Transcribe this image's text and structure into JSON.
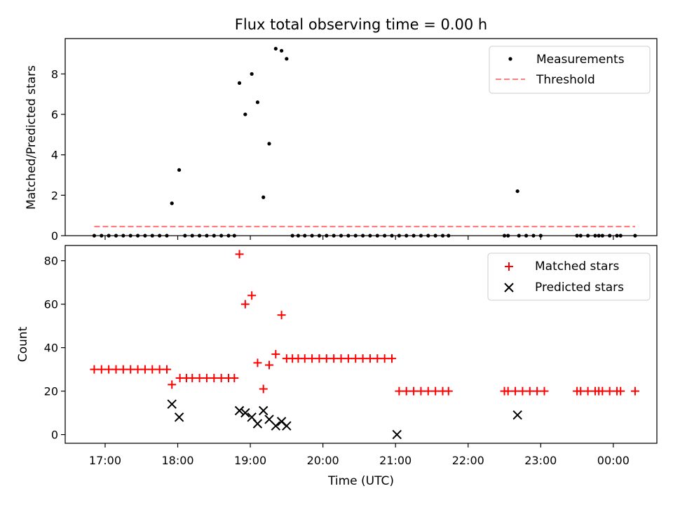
{
  "chart_data": [
    {
      "type": "scatter",
      "title": "Flux total observing time = 0.00 h",
      "xlabel": "",
      "ylabel": "Matched/Predicted stars",
      "xlim": [
        16.45,
        24.6
      ],
      "ylim": [
        0,
        9.75
      ],
      "yticks": [
        0,
        2,
        4,
        6,
        8
      ],
      "legend": {
        "position": "top-right",
        "entries": [
          {
            "label": "Measurements",
            "marker": "dot",
            "color": "#000000"
          },
          {
            "label": "Threshold",
            "marker": "dashed-line",
            "color": "#ff7f7f"
          }
        ]
      },
      "series": [
        {
          "name": "Measurements",
          "color": "#000000",
          "points": [
            [
              16.85,
              0
            ],
            [
              16.95,
              0
            ],
            [
              17.05,
              0
            ],
            [
              17.15,
              0
            ],
            [
              17.25,
              0
            ],
            [
              17.35,
              0
            ],
            [
              17.45,
              0
            ],
            [
              17.55,
              0
            ],
            [
              17.65,
              0
            ],
            [
              17.75,
              0
            ],
            [
              17.85,
              0
            ],
            [
              17.92,
              1.6
            ],
            [
              18.02,
              3.25
            ],
            [
              18.1,
              0
            ],
            [
              18.2,
              0
            ],
            [
              18.3,
              0
            ],
            [
              18.4,
              0
            ],
            [
              18.5,
              0
            ],
            [
              18.6,
              0
            ],
            [
              18.7,
              0
            ],
            [
              18.78,
              0
            ],
            [
              18.85,
              7.55
            ],
            [
              18.93,
              6.0
            ],
            [
              19.02,
              8.0
            ],
            [
              19.1,
              6.6
            ],
            [
              19.18,
              1.9
            ],
            [
              19.26,
              4.55
            ],
            [
              19.35,
              9.25
            ],
            [
              19.43,
              9.15
            ],
            [
              19.5,
              8.75
            ],
            [
              19.58,
              0
            ],
            [
              19.66,
              0
            ],
            [
              19.75,
              0
            ],
            [
              19.85,
              0
            ],
            [
              19.95,
              0
            ],
            [
              20.05,
              0
            ],
            [
              20.15,
              0
            ],
            [
              20.25,
              0
            ],
            [
              20.35,
              0
            ],
            [
              20.45,
              0
            ],
            [
              20.55,
              0
            ],
            [
              20.65,
              0
            ],
            [
              20.75,
              0
            ],
            [
              20.85,
              0
            ],
            [
              20.95,
              0
            ],
            [
              21.05,
              0
            ],
            [
              21.15,
              0
            ],
            [
              21.25,
              0
            ],
            [
              21.35,
              0
            ],
            [
              21.45,
              0
            ],
            [
              21.55,
              0
            ],
            [
              21.65,
              0
            ],
            [
              21.73,
              0
            ],
            [
              22.5,
              0
            ],
            [
              22.55,
              0
            ],
            [
              22.7,
              0
            ],
            [
              22.8,
              0
            ],
            [
              22.9,
              0
            ],
            [
              23.0,
              0
            ],
            [
              22.68,
              2.2
            ],
            [
              23.5,
              0
            ],
            [
              23.55,
              0
            ],
            [
              23.65,
              0
            ],
            [
              23.75,
              0
            ],
            [
              23.8,
              0
            ],
            [
              23.85,
              0
            ],
            [
              23.95,
              0
            ],
            [
              24.05,
              0
            ],
            [
              24.1,
              0
            ],
            [
              24.3,
              0
            ]
          ]
        },
        {
          "name": "Threshold",
          "color": "#ff7f7f",
          "style": "dashed",
          "x": [
            16.85,
            24.3
          ],
          "y": [
            0.45,
            0.45
          ]
        }
      ]
    },
    {
      "type": "scatter",
      "title": "",
      "xlabel": "Time (UTC)",
      "ylabel": "Count",
      "xlim": [
        16.45,
        24.6
      ],
      "ylim": [
        -4,
        87
      ],
      "yticks": [
        0,
        20,
        40,
        60,
        80
      ],
      "xticks": [
        {
          "value": 17,
          "label": "17:00"
        },
        {
          "value": 18,
          "label": "18:00"
        },
        {
          "value": 19,
          "label": "19:00"
        },
        {
          "value": 20,
          "label": "20:00"
        },
        {
          "value": 21,
          "label": "21:00"
        },
        {
          "value": 22,
          "label": "22:00"
        },
        {
          "value": 23,
          "label": "23:00"
        },
        {
          "value": 24,
          "label": "00:00"
        }
      ],
      "legend": {
        "position": "top-right",
        "entries": [
          {
            "label": "Matched stars",
            "marker": "plus",
            "color": "#ff0000"
          },
          {
            "label": "Predicted stars",
            "marker": "x",
            "color": "#000000"
          }
        ]
      },
      "series": [
        {
          "name": "Matched stars",
          "marker": "plus",
          "color": "#ff0000",
          "points": [
            [
              16.85,
              30
            ],
            [
              16.95,
              30
            ],
            [
              17.05,
              30
            ],
            [
              17.15,
              30
            ],
            [
              17.25,
              30
            ],
            [
              17.35,
              30
            ],
            [
              17.45,
              30
            ],
            [
              17.55,
              30
            ],
            [
              17.65,
              30
            ],
            [
              17.75,
              30
            ],
            [
              17.85,
              30
            ],
            [
              17.92,
              23
            ],
            [
              18.03,
              26
            ],
            [
              18.12,
              26
            ],
            [
              18.2,
              26
            ],
            [
              18.3,
              26
            ],
            [
              18.4,
              26
            ],
            [
              18.5,
              26
            ],
            [
              18.6,
              26
            ],
            [
              18.7,
              26
            ],
            [
              18.78,
              26
            ],
            [
              18.85,
              83
            ],
            [
              18.93,
              60
            ],
            [
              19.02,
              64
            ],
            [
              19.1,
              33
            ],
            [
              19.18,
              21
            ],
            [
              19.26,
              32
            ],
            [
              19.35,
              37
            ],
            [
              19.43,
              55
            ],
            [
              19.5,
              35
            ],
            [
              19.58,
              35
            ],
            [
              19.66,
              35
            ],
            [
              19.75,
              35
            ],
            [
              19.85,
              35
            ],
            [
              19.95,
              35
            ],
            [
              20.05,
              35
            ],
            [
              20.15,
              35
            ],
            [
              20.25,
              35
            ],
            [
              20.35,
              35
            ],
            [
              20.45,
              35
            ],
            [
              20.55,
              35
            ],
            [
              20.65,
              35
            ],
            [
              20.75,
              35
            ],
            [
              20.85,
              35
            ],
            [
              20.95,
              35
            ],
            [
              21.05,
              20
            ],
            [
              21.15,
              20
            ],
            [
              21.25,
              20
            ],
            [
              21.35,
              20
            ],
            [
              21.45,
              20
            ],
            [
              21.55,
              20
            ],
            [
              21.65,
              20
            ],
            [
              21.73,
              20
            ],
            [
              22.5,
              20
            ],
            [
              22.55,
              20
            ],
            [
              22.65,
              20
            ],
            [
              22.75,
              20
            ],
            [
              22.85,
              20
            ],
            [
              22.95,
              20
            ],
            [
              23.05,
              20
            ],
            [
              23.5,
              20
            ],
            [
              23.55,
              20
            ],
            [
              23.65,
              20
            ],
            [
              23.75,
              20
            ],
            [
              23.8,
              20
            ],
            [
              23.85,
              20
            ],
            [
              23.95,
              20
            ],
            [
              24.05,
              20
            ],
            [
              24.1,
              20
            ],
            [
              24.3,
              20
            ]
          ]
        },
        {
          "name": "Predicted stars",
          "marker": "x",
          "color": "#000000",
          "points": [
            [
              17.92,
              14
            ],
            [
              18.02,
              8
            ],
            [
              18.85,
              11
            ],
            [
              18.93,
              10
            ],
            [
              19.02,
              8
            ],
            [
              19.1,
              5
            ],
            [
              19.18,
              11
            ],
            [
              19.26,
              7
            ],
            [
              19.35,
              4
            ],
            [
              19.43,
              6
            ],
            [
              19.5,
              4
            ],
            [
              21.02,
              0
            ],
            [
              22.68,
              9
            ]
          ]
        }
      ]
    }
  ]
}
